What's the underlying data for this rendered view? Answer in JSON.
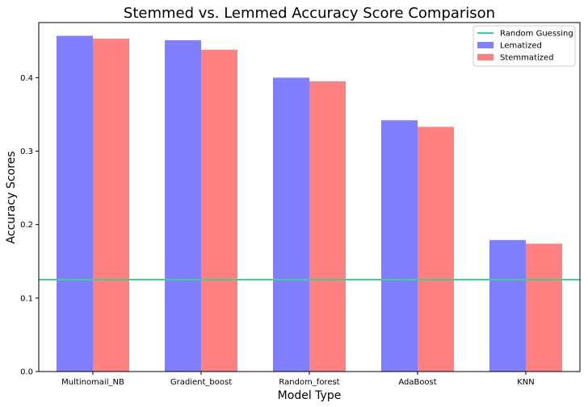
{
  "chart_data": {
    "type": "bar",
    "title": "Stemmed vs. Lemmed Accuracy Score Comparison",
    "xlabel": "Model Type",
    "ylabel": "Accuracy Scores",
    "categories": [
      "Multinomail_NB",
      "Gradient_boost",
      "Random_forest",
      "AdaBoost",
      "KNN"
    ],
    "series": [
      {
        "name": "Lematized",
        "values": [
          0.457,
          0.451,
          0.4,
          0.342,
          0.179
        ],
        "color": "#8080ff"
      },
      {
        "name": "Stemmatized",
        "values": [
          0.453,
          0.438,
          0.395,
          0.333,
          0.174
        ],
        "color": "#ff8080"
      }
    ],
    "reference_line": {
      "name": "Random Guessing",
      "value": 0.125,
      "color": "#3fcf8e"
    },
    "ylim": [
      0,
      0.475
    ],
    "yticks": [
      "0.0",
      "0.1",
      "0.2",
      "0.3",
      "0.4"
    ],
    "grid": false,
    "legend_position": "top-right"
  }
}
